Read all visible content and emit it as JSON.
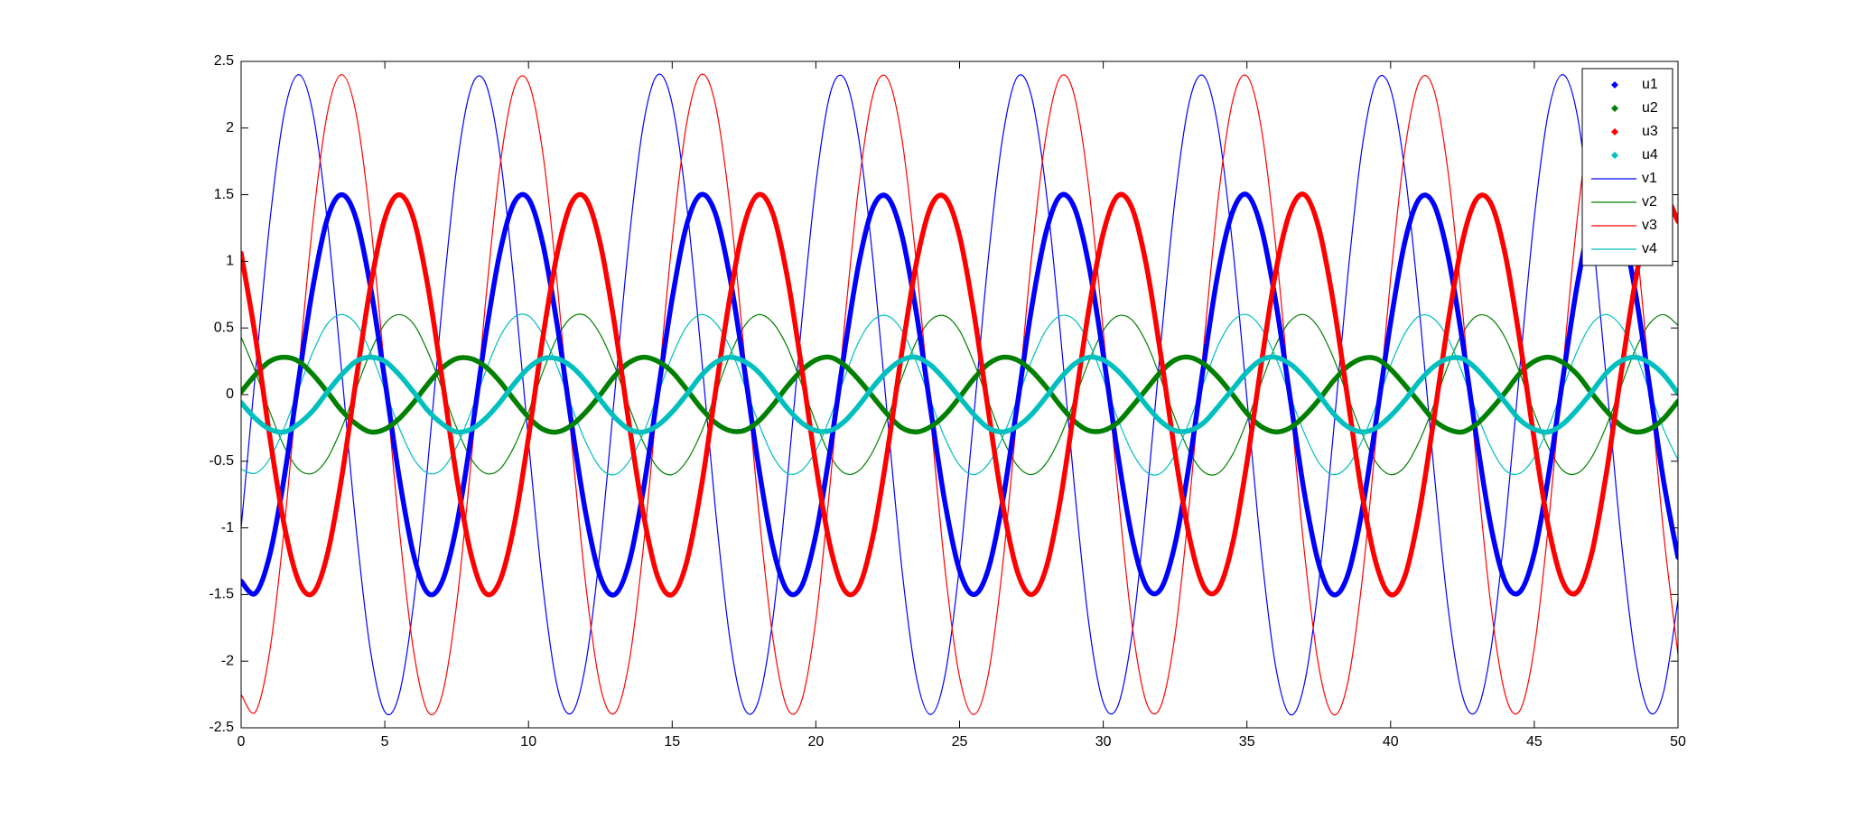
{
  "chart_data": {
    "type": "line",
    "xlim": [
      0,
      50
    ],
    "ylim": [
      -2.5,
      2.5
    ],
    "xticks": [
      0,
      5,
      10,
      15,
      20,
      25,
      30,
      35,
      40,
      45,
      50
    ],
    "yticks": [
      -2.5,
      -2,
      -1.5,
      -1,
      -0.5,
      0,
      0.5,
      1,
      1.5,
      2,
      2.5
    ],
    "grid": false,
    "legend": "upper right",
    "x": [
      0,
      0.5,
      1,
      1.5,
      2,
      2.5,
      3,
      3.5,
      4,
      4.5,
      5,
      5.5,
      6,
      6.5,
      7,
      7.5,
      8,
      8.5,
      9,
      9.5,
      10,
      10.5,
      11,
      11.5,
      12,
      12.5,
      13,
      13.5,
      14,
      14.5,
      15,
      15.5,
      16,
      16.5,
      17,
      17.5,
      18,
      18.5,
      19,
      19.5,
      20,
      20.5,
      21,
      21.5,
      22,
      22.5,
      23,
      23.5,
      24,
      24.5,
      25,
      25.5,
      26,
      26.5,
      27,
      27.5,
      28,
      28.5,
      29,
      29.5,
      30,
      30.5,
      31,
      31.5,
      32,
      32.5,
      33,
      33.5,
      34,
      34.5,
      35,
      35.5,
      36,
      36.5,
      37,
      37.5,
      38,
      38.5,
      39,
      39.5,
      40,
      40.5,
      41,
      41.5,
      42,
      42.5,
      43,
      43.5,
      44,
      44.5,
      45,
      45.5,
      46,
      46.5,
      47,
      47.5,
      48,
      48.5,
      49,
      49.5,
      50
    ],
    "series": [
      {
        "name": "u1",
        "color": "#0000ff",
        "style": "dots",
        "values": [
          -1.4,
          -1.49,
          -1.2,
          -0.62,
          0.11,
          0.81,
          1.32,
          1.5,
          1.32,
          0.81,
          0.11,
          -0.62,
          -1.2,
          -1.49,
          -1.4,
          -0.98,
          -0.32,
          0.43,
          1.06,
          1.44,
          1.47,
          1.13,
          0.52,
          -0.22,
          -0.9,
          -1.37,
          -1.5,
          -1.26,
          -0.71,
          0.01,
          0.72,
          1.27,
          1.5,
          1.36,
          0.89,
          0.21,
          -0.53,
          -1.14,
          -1.47,
          -1.44,
          -1.05,
          -0.41,
          0.33,
          0.99,
          1.41,
          1.48,
          1.19,
          0.61,
          -0.12,
          -0.82,
          -1.32,
          -1.5,
          -1.31,
          -0.8,
          -0.09,
          0.64,
          1.21,
          1.49,
          1.4,
          0.97,
          0.3,
          -0.44,
          -1.07,
          -1.44,
          -1.46,
          -1.12,
          -0.51,
          0.23,
          0.92,
          1.37,
          1.5,
          1.25,
          0.7,
          -0.02,
          -0.74,
          -1.27,
          -1.5,
          -1.36,
          -0.88,
          -0.19,
          0.54,
          1.15,
          1.47,
          1.43,
          1.04,
          0.4,
          -0.34,
          -1.0,
          -1.41,
          -1.48,
          -1.19,
          -0.6,
          0.13,
          0.83,
          1.33,
          1.5,
          1.3,
          0.79,
          0.08,
          -0.65,
          -1.22
        ]
      },
      {
        "name": "u2",
        "color": "#008000",
        "style": "dots",
        "values": [
          0.02,
          0.15,
          0.25,
          0.28,
          0.25,
          0.15,
          0.02,
          -0.12,
          -0.22,
          -0.28,
          -0.26,
          -0.18,
          -0.06,
          0.08,
          0.2,
          0.27,
          0.27,
          0.21,
          0.1,
          -0.04,
          -0.17,
          -0.26,
          -0.28,
          -0.23,
          -0.13,
          0,
          0.14,
          0.24,
          0.28,
          0.25,
          0.17,
          0.04,
          -0.1,
          -0.21,
          -0.27,
          -0.27,
          -0.2,
          -0.08,
          0.06,
          0.18,
          0.26,
          0.28,
          0.22,
          0.11,
          -0.02,
          -0.15,
          -0.25,
          -0.28,
          -0.24,
          -0.15,
          -0.02,
          0.12,
          0.23,
          0.28,
          0.26,
          0.18,
          0.06,
          -0.08,
          -0.2,
          -0.27,
          -0.27,
          -0.21,
          -0.09,
          0.04,
          0.17,
          0.26,
          0.28,
          0.23,
          0.13,
          0,
          -0.14,
          -0.24,
          -0.28,
          -0.25,
          -0.16,
          -0.04,
          0.1,
          0.21,
          0.27,
          0.27,
          0.19,
          0.07,
          -0.06,
          -0.19,
          -0.26,
          -0.28,
          -0.22,
          -0.11,
          0.02,
          0.16,
          0.25,
          0.28,
          0.24,
          0.15,
          0.01,
          -0.12,
          -0.23,
          -0.28,
          -0.26,
          -0.18,
          -0.05
        ]
      },
      {
        "name": "u3",
        "color": "#ff0000",
        "style": "dots",
        "values": [
          1.06,
          0.43,
          -0.32,
          -0.98,
          -1.4,
          -1.49,
          -1.2,
          -0.62,
          0.11,
          0.81,
          1.32,
          1.5,
          1.32,
          0.81,
          0.11,
          -0.62,
          -1.2,
          -1.49,
          -1.4,
          -0.98,
          -0.32,
          0.43,
          1.06,
          1.44,
          1.47,
          1.13,
          0.52,
          -0.22,
          -0.9,
          -1.37,
          -1.5,
          -1.26,
          -0.71,
          0.01,
          0.72,
          1.27,
          1.5,
          1.36,
          0.89,
          0.21,
          -0.53,
          -1.14,
          -1.47,
          -1.44,
          -1.05,
          -0.41,
          0.33,
          0.99,
          1.41,
          1.48,
          1.19,
          0.61,
          -0.12,
          -0.82,
          -1.32,
          -1.5,
          -1.31,
          -0.8,
          -0.09,
          0.64,
          1.21,
          1.49,
          1.4,
          0.97,
          0.3,
          -0.44,
          -1.07,
          -1.44,
          -1.46,
          -1.12,
          -0.51,
          0.23,
          0.92,
          1.37,
          1.5,
          1.25,
          0.7,
          -0.02,
          -0.74,
          -1.27,
          -1.5,
          -1.36,
          -0.88,
          -0.19,
          0.54,
          1.15,
          1.47,
          1.43,
          1.04,
          0.4,
          -0.34,
          -1.0,
          -1.41,
          -1.48,
          -1.19,
          -0.6,
          0.13,
          0.83,
          1.33,
          1.5,
          1.3
        ]
      },
      {
        "name": "u4",
        "color": "#00bfbf",
        "style": "dots",
        "values": [
          -0.06,
          -0.18,
          -0.26,
          -0.28,
          -0.22,
          -0.12,
          0.02,
          0.15,
          0.25,
          0.28,
          0.25,
          0.15,
          0.02,
          -0.12,
          -0.22,
          -0.28,
          -0.26,
          -0.18,
          -0.06,
          0.08,
          0.2,
          0.27,
          0.27,
          0.21,
          0.1,
          -0.04,
          -0.17,
          -0.26,
          -0.28,
          -0.23,
          -0.13,
          0,
          0.14,
          0.24,
          0.28,
          0.25,
          0.17,
          0.04,
          -0.1,
          -0.21,
          -0.27,
          -0.27,
          -0.2,
          -0.08,
          0.06,
          0.18,
          0.26,
          0.28,
          0.22,
          0.11,
          -0.02,
          -0.15,
          -0.25,
          -0.28,
          -0.24,
          -0.15,
          -0.02,
          0.12,
          0.23,
          0.28,
          0.26,
          0.18,
          0.06,
          -0.08,
          -0.2,
          -0.27,
          -0.27,
          -0.21,
          -0.09,
          0.04,
          0.17,
          0.26,
          0.28,
          0.23,
          0.13,
          0,
          -0.14,
          -0.24,
          -0.28,
          -0.25,
          -0.16,
          -0.04,
          0.1,
          0.21,
          0.27,
          0.27,
          0.19,
          0.07,
          -0.06,
          -0.19,
          -0.26,
          -0.28,
          -0.22,
          -0.11,
          0.02,
          0.16,
          0.25,
          0.28,
          0.24,
          0.15,
          0.01
        ]
      },
      {
        "name": "v1",
        "color": "#0000ff",
        "style": "line",
        "values": [
          -1.0,
          0.17,
          1.3,
          2.11,
          2.4,
          2.11,
          1.3,
          0.17,
          -1.0,
          -1.92,
          -2.38,
          -2.25,
          -1.57,
          -0.51,
          0.68,
          1.7,
          2.3,
          2.34,
          1.81,
          0.83,
          -0.35,
          -1.44,
          -2.19,
          -2.39,
          -2.01,
          -1.14,
          0.01,
          1.16,
          2.03,
          2.4,
          2.18,
          1.43,
          0.33,
          -0.85,
          -1.82,
          -2.35,
          -2.3,
          -1.69,
          -0.66,
          0.53,
          1.58,
          2.26,
          2.37,
          1.91,
          0.98,
          -0.19,
          -1.32,
          -2.12,
          -2.4,
          -2.1,
          -1.28,
          -0.15,
          1.02,
          1.93,
          2.38,
          2.24,
          1.55,
          0.48,
          -0.7,
          -1.72,
          -2.31,
          -2.34,
          -1.8,
          -0.81,
          0.37,
          1.47,
          2.2,
          2.39,
          2.0,
          1.12,
          -0.03,
          -1.18,
          -2.04,
          -2.4,
          -2.17,
          -1.41,
          -0.31,
          0.87,
          1.84,
          2.35,
          2.29,
          1.67,
          0.64,
          -0.55,
          -1.6,
          -2.26,
          -2.37,
          -1.9,
          -0.96,
          0.21,
          1.33,
          2.13,
          2.4,
          2.09,
          1.26,
          0.13,
          -1.04,
          -1.95,
          -2.38,
          -2.23,
          -1.54
        ]
      },
      {
        "name": "v2",
        "color": "#008000",
        "style": "line",
        "values": [
          0.43,
          0.17,
          -0.13,
          -0.39,
          -0.56,
          -0.59,
          -0.48,
          -0.25,
          0.04,
          0.32,
          0.53,
          0.6,
          0.53,
          0.32,
          0.04,
          -0.25,
          -0.48,
          -0.59,
          -0.56,
          -0.39,
          -0.13,
          0.17,
          0.43,
          0.58,
          0.59,
          0.45,
          0.21,
          -0.09,
          -0.36,
          -0.55,
          -0.6,
          -0.5,
          -0.29,
          0,
          0.29,
          0.51,
          0.6,
          0.54,
          0.36,
          0.08,
          -0.21,
          -0.46,
          -0.59,
          -0.57,
          -0.42,
          -0.17,
          0.13,
          0.4,
          0.56,
          0.59,
          0.48,
          0.24,
          -0.05,
          -0.33,
          -0.53,
          -0.6,
          -0.52,
          -0.32,
          -0.04,
          0.25,
          0.48,
          0.59,
          0.56,
          0.39,
          0.12,
          -0.18,
          -0.43,
          -0.58,
          -0.59,
          -0.45,
          -0.2,
          0.09,
          0.37,
          0.55,
          0.6,
          0.5,
          0.28,
          -0.01,
          -0.29,
          -0.51,
          -0.6,
          -0.54,
          -0.35,
          -0.08,
          0.22,
          0.46,
          0.59,
          0.57,
          0.42,
          0.16,
          -0.14,
          -0.4,
          -0.57,
          -0.59,
          -0.47,
          -0.24,
          0.05,
          0.33,
          0.53,
          0.6,
          0.52
        ]
      },
      {
        "name": "v3",
        "color": "#ff0000",
        "style": "line",
        "values": [
          -2.25,
          -2.38,
          -1.92,
          -1.0,
          0.17,
          1.3,
          2.11,
          2.4,
          2.11,
          1.3,
          0.17,
          -1.0,
          -1.92,
          -2.38,
          -2.25,
          -1.57,
          -0.51,
          0.68,
          1.7,
          2.3,
          2.34,
          1.81,
          0.83,
          -0.35,
          -1.44,
          -2.19,
          -2.39,
          -2.01,
          -1.14,
          0.01,
          1.16,
          2.03,
          2.4,
          2.18,
          1.43,
          0.33,
          -0.85,
          -1.82,
          -2.35,
          -2.3,
          -1.69,
          -0.66,
          0.53,
          1.58,
          2.26,
          2.37,
          1.91,
          0.98,
          -0.19,
          -1.32,
          -2.12,
          -2.4,
          -2.1,
          -1.28,
          -0.15,
          1.02,
          1.93,
          2.38,
          2.24,
          1.55,
          0.48,
          -0.7,
          -1.72,
          -2.31,
          -2.34,
          -1.8,
          -0.81,
          0.37,
          1.47,
          2.2,
          2.39,
          2.0,
          1.12,
          -0.03,
          -1.18,
          -2.04,
          -2.4,
          -2.17,
          -1.41,
          -0.31,
          0.87,
          1.84,
          2.35,
          2.29,
          1.67,
          0.64,
          -0.55,
          -1.6,
          -2.26,
          -2.37,
          -1.9,
          -0.96,
          0.21,
          1.33,
          2.13,
          2.4,
          2.09,
          1.26,
          0.13,
          -1.04,
          -1.95
        ]
      },
      {
        "name": "v4",
        "color": "#00bfbf",
        "style": "line",
        "values": [
          -0.56,
          -0.59,
          -0.48,
          -0.25,
          0.04,
          0.32,
          0.53,
          0.6,
          0.53,
          0.32,
          0.04,
          -0.25,
          -0.48,
          -0.59,
          -0.56,
          -0.39,
          -0.13,
          0.17,
          0.43,
          0.58,
          0.59,
          0.45,
          0.21,
          -0.09,
          -0.36,
          -0.55,
          -0.6,
          -0.5,
          -0.29,
          0,
          0.29,
          0.51,
          0.6,
          0.54,
          0.36,
          0.08,
          -0.21,
          -0.46,
          -0.59,
          -0.57,
          -0.42,
          -0.17,
          0.13,
          0.4,
          0.56,
          0.59,
          0.48,
          0.24,
          -0.05,
          -0.33,
          -0.53,
          -0.6,
          -0.52,
          -0.32,
          -0.04,
          0.25,
          0.48,
          0.59,
          0.56,
          0.39,
          0.12,
          -0.18,
          -0.43,
          -0.58,
          -0.59,
          -0.45,
          -0.2,
          0.09,
          0.37,
          0.55,
          0.6,
          0.5,
          0.28,
          -0.01,
          -0.29,
          -0.51,
          -0.6,
          -0.54,
          -0.35,
          -0.08,
          0.22,
          0.46,
          0.59,
          0.57,
          0.42,
          0.16,
          -0.14,
          -0.4,
          -0.57,
          -0.59,
          -0.47,
          -0.24,
          0.05,
          0.33,
          0.53,
          0.6,
          0.52,
          0.32,
          0.03,
          -0.26,
          -0.49
        ]
      }
    ]
  }
}
